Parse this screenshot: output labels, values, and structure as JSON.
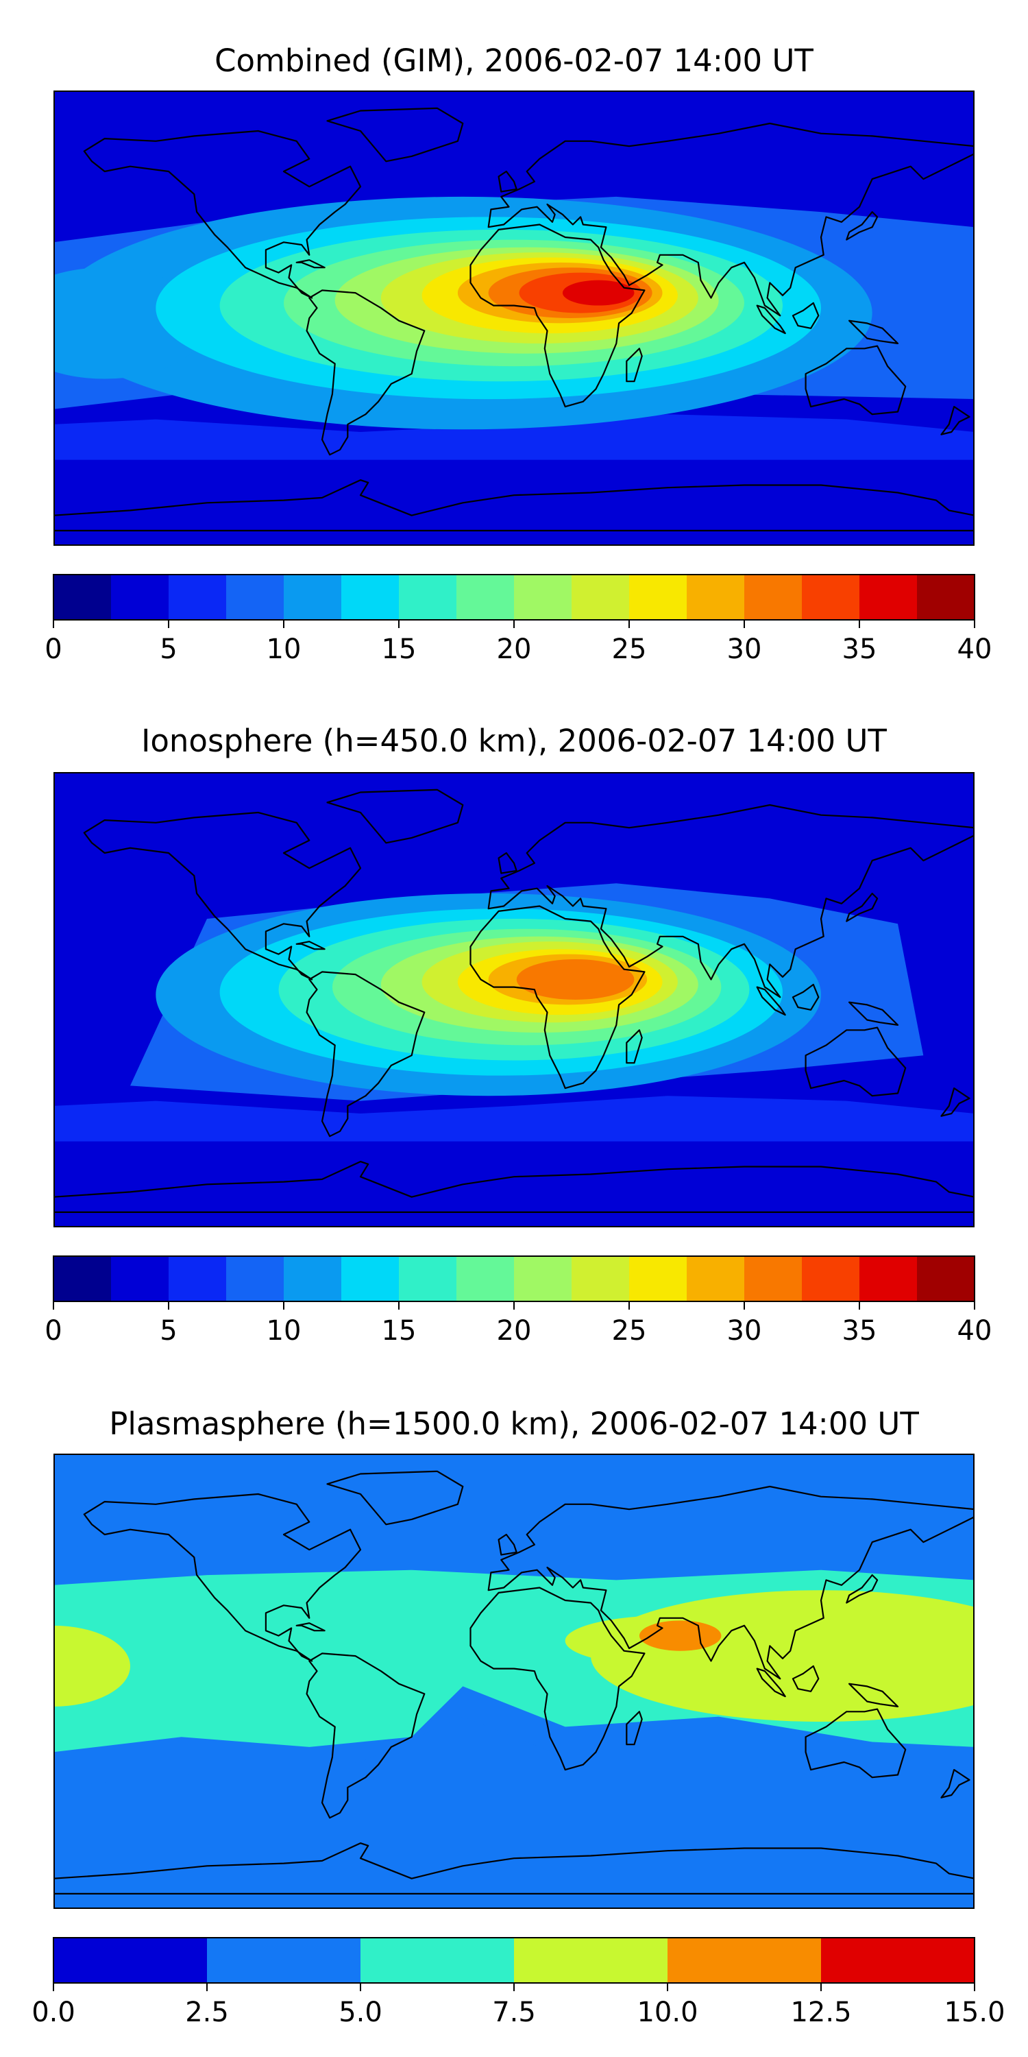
{
  "chart_data": [
    {
      "type": "heatmap",
      "id": "combined",
      "title": "Combined (GIM), 2006-02-07 14:00 UT",
      "colorbar": {
        "levels": [
          0,
          2.5,
          5,
          7.5,
          10,
          12.5,
          15,
          17.5,
          20,
          22.5,
          25,
          27.5,
          30,
          32.5,
          35,
          37.5,
          40
        ],
        "colors": [
          "#00008f",
          "#0000d6",
          "#0a28f5",
          "#1464f5",
          "#0a9af0",
          "#00d8f8",
          "#30f0c8",
          "#64f898",
          "#a0f864",
          "#d0f030",
          "#f8e800",
          "#f8b000",
          "#f87800",
          "#f84000",
          "#e00000",
          "#a00000"
        ],
        "ticks": [
          0,
          5,
          10,
          15,
          20,
          25,
          30,
          35,
          40
        ],
        "tick_labels": [
          "0",
          "5",
          "10",
          "15",
          "20",
          "25",
          "30",
          "35",
          "40"
        ]
      },
      "peak_value": 36,
      "peak_region": "Equatorial Africa"
    },
    {
      "type": "heatmap",
      "id": "ionosphere",
      "title": "Ionosphere  (h=450.0 km), 2006-02-07 14:00 UT",
      "colorbar": {
        "levels": [
          0,
          2.5,
          5,
          7.5,
          10,
          12.5,
          15,
          17.5,
          20,
          22.5,
          25,
          27.5,
          30,
          32.5,
          35,
          37.5,
          40
        ],
        "colors": [
          "#00008f",
          "#0000d6",
          "#0a28f5",
          "#1464f5",
          "#0a9af0",
          "#00d8f8",
          "#30f0c8",
          "#64f898",
          "#a0f864",
          "#d0f030",
          "#f8e800",
          "#f8b000",
          "#f87800",
          "#f84000",
          "#e00000",
          "#a00000"
        ],
        "ticks": [
          0,
          5,
          10,
          15,
          20,
          25,
          30,
          35,
          40
        ],
        "tick_labels": [
          "0",
          "5",
          "10",
          "15",
          "20",
          "25",
          "30",
          "35",
          "40"
        ]
      },
      "peak_value": 31,
      "peak_region": "Equatorial Africa"
    },
    {
      "type": "heatmap",
      "id": "plasmasphere",
      "title": "Plasmasphere (h=1500.0 km), 2006-02-07 14:00 UT",
      "colorbar": {
        "levels": [
          0,
          2.5,
          5,
          7.5,
          10,
          12.5,
          15
        ],
        "colors": [
          "#0000d6",
          "#1478f5",
          "#30f0c8",
          "#c8f830",
          "#f88c00",
          "#e00000"
        ],
        "ticks": [
          0,
          2.5,
          5,
          7.5,
          10,
          12.5,
          15
        ],
        "tick_labels": [
          "0.0",
          "2.5",
          "5.0",
          "7.5",
          "10.0",
          "12.5",
          "15.0"
        ]
      },
      "peak_value": 11,
      "peak_region": "Arabian Sea / India"
    }
  ]
}
